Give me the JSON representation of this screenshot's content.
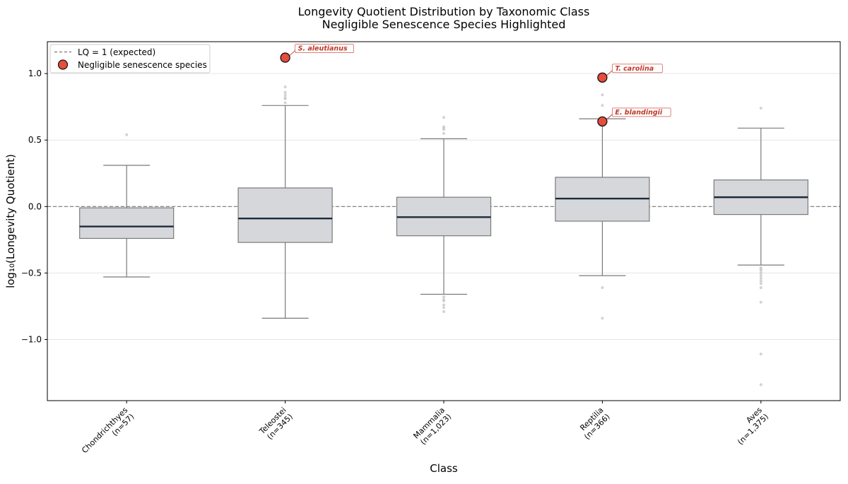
{
  "chart_data": {
    "type": "box",
    "title": "Longevity Quotient Distribution by Taxonomic Class",
    "subtitle": "Negligible Senescence Species Highlighted",
    "xlabel": "Class",
    "ylabel": "log₁₀(Longevity Quotient)",
    "ylim": [
      -1.46,
      1.24
    ],
    "yticks": [
      1.0,
      0.5,
      0.0,
      -0.5,
      -1.0
    ],
    "ytick_labels": [
      "1.0",
      "0.5",
      "0.0",
      "−0.5",
      "−1.0"
    ],
    "grid": true,
    "legend_position": "top-left",
    "reference_line": {
      "y": 0.0,
      "label": "LQ = 1 (expected)",
      "style": "dashed"
    },
    "colors": {
      "box_fill": "#d5d7db",
      "box_edge": "#7a7a7a",
      "median": "#1c2b3a",
      "highlight": "#e74c3c",
      "highlight_edge": "#111111",
      "annotation_text": "#c0392b",
      "outlier": "#c8c8c8",
      "grid": "#e6e6e6"
    },
    "categories": [
      "Chondrichthyes\n(n=57)",
      "Teleostei\n(n=345)",
      "Mammalia\n(n=1,023)",
      "Reptilia\n(n=366)",
      "Aves\n(n=1,375)"
    ],
    "boxes": [
      {
        "class": "Chondrichthyes",
        "n_label": "(n=57)",
        "whisker_low": -0.53,
        "q1": -0.24,
        "median": -0.15,
        "q3": -0.01,
        "whisker_high": 0.31,
        "outliers": [
          0.54
        ]
      },
      {
        "class": "Teleostei",
        "n_label": "(n=345)",
        "whisker_low": -0.84,
        "q1": -0.27,
        "median": -0.09,
        "q3": 0.14,
        "whisker_high": 0.76,
        "outliers": [
          0.78,
          0.81,
          0.82,
          0.84,
          0.86,
          0.9
        ]
      },
      {
        "class": "Mammalia",
        "n_label": "(n=1,023)",
        "whisker_low": -0.66,
        "q1": -0.22,
        "median": -0.08,
        "q3": 0.07,
        "whisker_high": 0.51,
        "outliers": [
          0.55,
          0.58,
          0.59,
          0.6,
          0.67,
          -0.68,
          -0.7,
          -0.71,
          -0.74,
          -0.76,
          -0.79
        ]
      },
      {
        "class": "Reptilia",
        "n_label": "(n=366)",
        "whisker_low": -0.52,
        "q1": -0.11,
        "median": 0.06,
        "q3": 0.22,
        "whisker_high": 0.66,
        "outliers": [
          0.76,
          0.84,
          -0.61,
          -0.84
        ]
      },
      {
        "class": "Aves",
        "n_label": "(n=1,375)",
        "whisker_low": -0.44,
        "q1": -0.06,
        "median": 0.07,
        "q3": 0.2,
        "whisker_high": 0.59,
        "outliers": [
          0.74,
          -0.46,
          -0.47,
          -0.48,
          -0.5,
          -0.52,
          -0.54,
          -0.56,
          -0.58,
          -0.61,
          -0.72,
          -1.11,
          -1.34
        ]
      }
    ],
    "highlighted_species": [
      {
        "name": "S. aleutianus",
        "class": "Teleostei",
        "value": 1.12
      },
      {
        "name": "T. carolina",
        "class": "Reptilia",
        "value": 0.97
      },
      {
        "name": "E. blandingii",
        "class": "Reptilia",
        "value": 0.64
      }
    ],
    "legend": [
      {
        "label": "LQ = 1 (expected)",
        "marker": "dashed-line"
      },
      {
        "label": "Negligible senescence species",
        "marker": "red-circle"
      }
    ]
  }
}
